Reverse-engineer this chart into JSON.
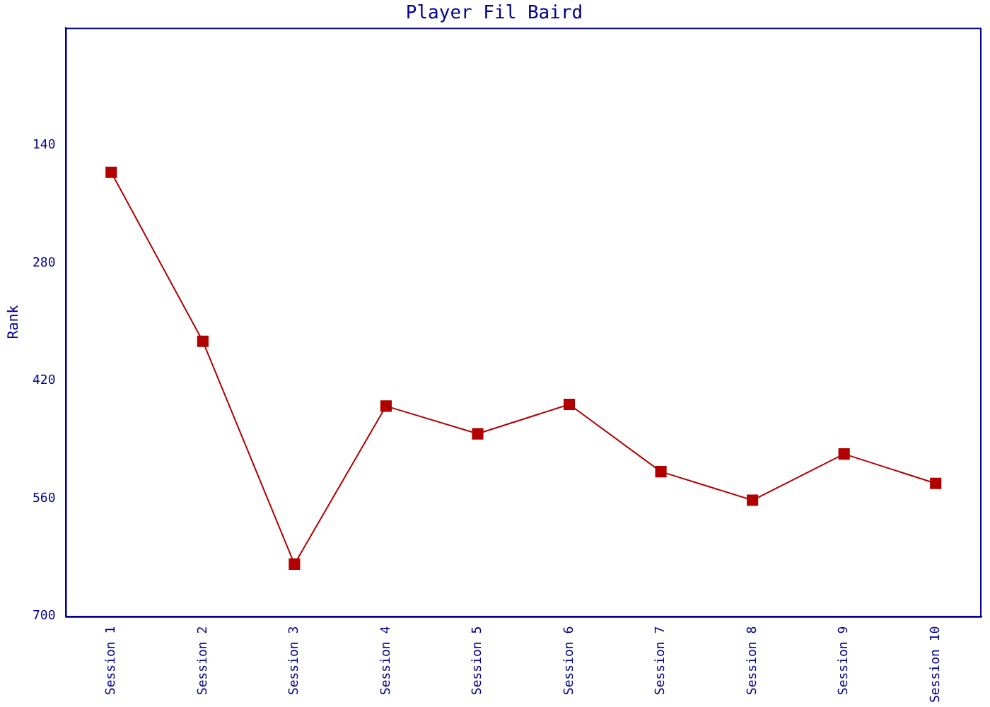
{
  "chart_data": {
    "type": "line",
    "title": "Player Fil Baird",
    "ylabel": "Rank",
    "categories": [
      "Session 1",
      "Session 2",
      "Session 3",
      "Session 4",
      "Session 5",
      "Session 6",
      "Session 7",
      "Session 8",
      "Session 9",
      "Session 10"
    ],
    "series": [
      {
        "color": "#b00000",
        "values": [
          172,
          373,
          638,
          450,
          483,
          448,
          528,
          562,
          507,
          542
        ]
      }
    ],
    "ylim": [
      700,
      0
    ],
    "yticks": [
      140,
      280,
      420,
      560,
      700
    ],
    "grid": false,
    "legend": false,
    "marker": "square",
    "line_style": "solid"
  }
}
